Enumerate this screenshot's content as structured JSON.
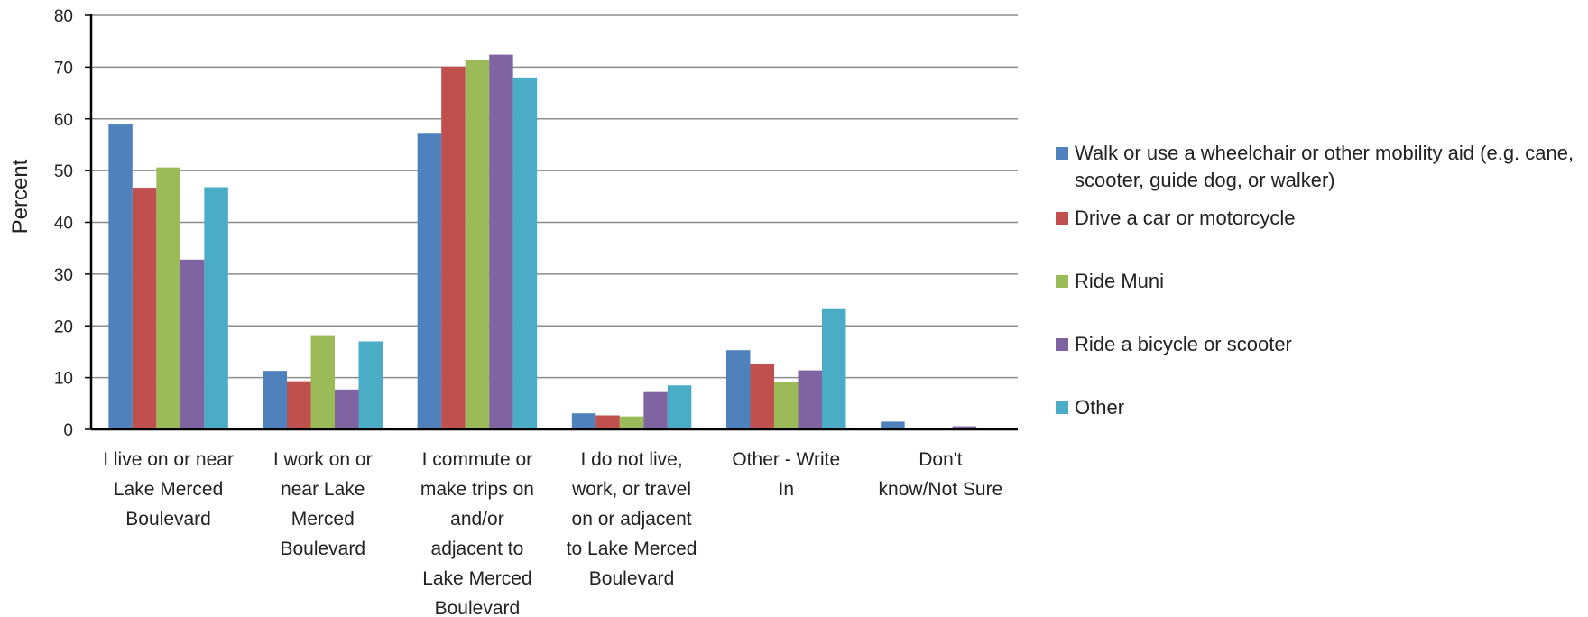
{
  "chart_data": {
    "type": "bar",
    "ylabel": "Percent",
    "ylim": [
      0,
      80
    ],
    "yticks": [
      0,
      10,
      20,
      30,
      40,
      50,
      60,
      70,
      80
    ],
    "grid": true,
    "legend_position": "right",
    "categories": [
      [
        "I live on or near",
        "Lake Merced",
        "Boulevard"
      ],
      [
        "I work on or",
        "near Lake",
        "Merced",
        "Boulevard"
      ],
      [
        "I commute or",
        "make trips on",
        "and/or",
        "adjacent to",
        "Lake Merced",
        "Boulevard"
      ],
      [
        "I do not live,",
        "work, or travel",
        "on or adjacent",
        "to Lake Merced",
        "Boulevard"
      ],
      [
        "Other - Write",
        "In"
      ],
      [
        "Don't",
        "know/Not Sure"
      ]
    ],
    "series": [
      {
        "name": "Walk or use a wheelchair or other mobility aid (e.g. cane, scooter, guide dog, or walker)",
        "color": "#4f81bd",
        "values": [
          58.9,
          11.3,
          57.3,
          3.1,
          15.3,
          1.5
        ]
      },
      {
        "name": "Drive a car or motorcycle",
        "color": "#c0504d",
        "values": [
          46.7,
          9.3,
          70.1,
          2.7,
          12.6,
          0
        ]
      },
      {
        "name": "Ride Muni",
        "color": "#9bbb59",
        "values": [
          50.6,
          18.2,
          71.3,
          2.5,
          9.1,
          0
        ]
      },
      {
        "name": "Ride a bicycle or scooter",
        "color": "#8064a2",
        "values": [
          32.8,
          7.7,
          72.4,
          7.2,
          11.4,
          0.6
        ]
      },
      {
        "name": "Other",
        "color": "#4bacc6",
        "values": [
          46.8,
          17.0,
          68.0,
          8.5,
          23.4,
          0
        ]
      }
    ]
  }
}
